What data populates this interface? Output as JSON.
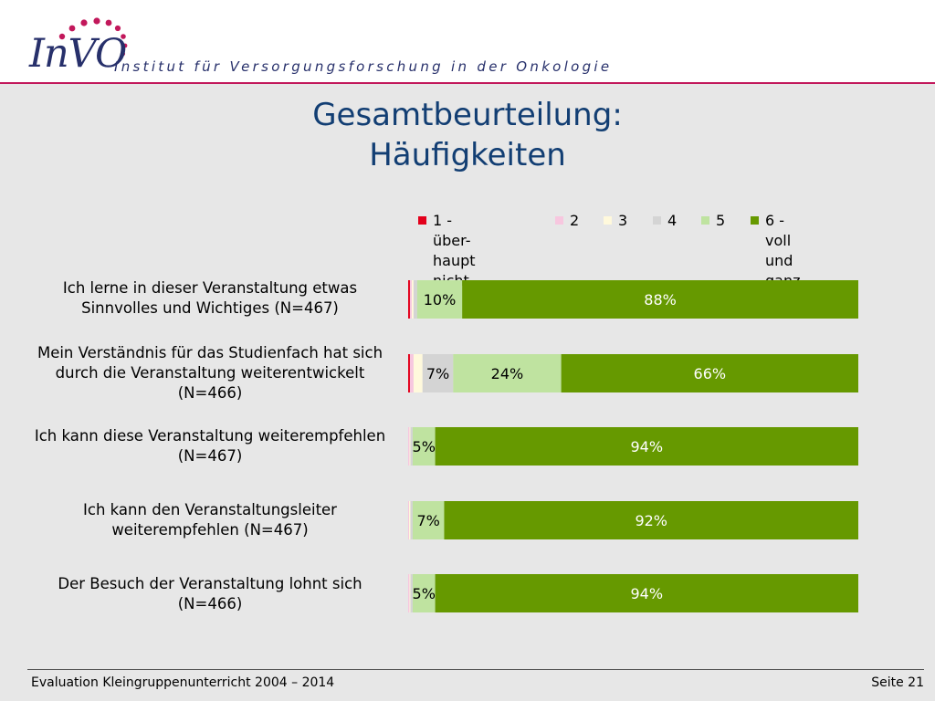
{
  "header": {
    "logo": "InVO",
    "institute": "Institut für Versorgungsforschung in der Onkologie"
  },
  "title_line1": "Gesamtbeurteilung:",
  "title_line2": "Häufigkeiten",
  "colors": {
    "cat1": "#e3001b",
    "cat2": "#f7c7df",
    "cat3": "#fff9dc",
    "cat4": "#d4d4d4",
    "cat5": "#bfe3a0",
    "cat6": "#669900",
    "title": "#123e73",
    "accent_line": "#c2185b"
  },
  "chart_data": {
    "type": "bar",
    "orientation": "horizontal",
    "stacked": true,
    "xlim": [
      0,
      100
    ],
    "legend_position": "top",
    "legend": [
      "1 - über-\nhaupt nicht",
      "2",
      "3",
      "4",
      "5",
      "6 - voll\nund ganz"
    ],
    "categories": [
      "Ich lerne in dieser Veranstaltung etwas Sinnvolles und Wichtiges (N=467)",
      "Mein Verständnis für das Studienfach hat sich durch die Veranstaltung weiterentwickelt (N=466)",
      "Ich kann diese Veranstaltung weiterempfehlen (N=467)",
      "Ich kann den Veranstaltungsleiter weiterempfehlen (N=467)",
      "Der Besuch der Veranstaltung lohnt sich (N=466)"
    ],
    "series": [
      {
        "name": "1 - überhaupt nicht",
        "values": [
          0.4,
          0.4,
          0,
          0,
          0
        ]
      },
      {
        "name": "2",
        "values": [
          0.4,
          0.8,
          0.3,
          0.2,
          0.3
        ]
      },
      {
        "name": "3",
        "values": [
          0.4,
          2.0,
          0.2,
          0.3,
          0.2
        ]
      },
      {
        "name": "4",
        "values": [
          0.8,
          6.8,
          0.5,
          0.5,
          0.5
        ]
      },
      {
        "name": "5",
        "values": [
          10,
          24,
          5,
          7,
          5
        ]
      },
      {
        "name": "6 - voll und ganz",
        "values": [
          88,
          66,
          94,
          92,
          94
        ]
      }
    ],
    "data_labels": [
      [
        "",
        "",
        "",
        "",
        "10%",
        "88%"
      ],
      [
        "",
        "",
        "",
        "7%",
        "24%",
        "66%"
      ],
      [
        "",
        "",
        "",
        "",
        "5%",
        "94%"
      ],
      [
        "",
        "",
        "",
        "",
        "7%",
        "92%"
      ],
      [
        "",
        "",
        "",
        "",
        "5%",
        "94%"
      ]
    ]
  },
  "footer": {
    "left": "Evaluation Kleingruppenunterricht 2004 – 2014",
    "right": "Seite 21"
  }
}
